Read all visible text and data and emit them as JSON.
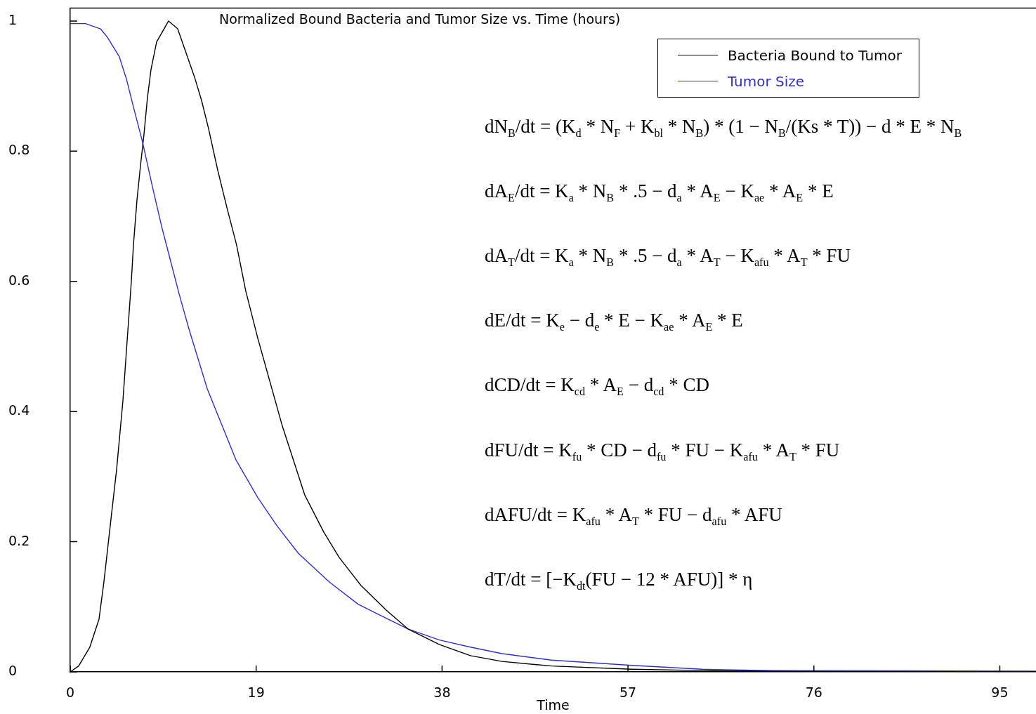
{
  "chart_data": {
    "type": "line",
    "title": "Normalized Bound Bacteria and Tumor Size vs. Time (hours)",
    "xlabel": "Time",
    "xlim": [
      0,
      98.7
    ],
    "xticks": [
      0,
      19,
      38,
      57,
      76,
      95
    ],
    "ylim": [
      0,
      1.02
    ],
    "yticks": [
      0,
      0.2,
      0.4,
      0.6,
      0.8,
      1
    ],
    "grid": false,
    "legend": "top right",
    "marker": "none",
    "line_style": "solid",
    "series": [
      {
        "name": "Bacteria Bound to Tumor",
        "color": "#000000",
        "x": [
          0,
          0.86,
          2.0,
          2.94,
          3.44,
          4.09,
          4.74,
          5.38,
          6.24,
          6.46,
          6.82,
          7.18,
          7.53,
          7.89,
          8.25,
          8.83,
          10.05,
          10.98,
          11.7,
          12.7,
          13.42,
          14.13,
          15.07,
          16.0,
          17.0,
          17.94,
          19.16,
          21.67,
          23.96,
          25.9,
          27.48,
          29.7,
          32.29,
          34.51,
          37.74,
          40.9,
          44.13,
          49.2,
          57.4,
          64.6,
          72,
          80,
          98.7
        ],
        "values": [
          0,
          0.009,
          0.038,
          0.081,
          0.138,
          0.225,
          0.311,
          0.416,
          0.599,
          0.656,
          0.725,
          0.778,
          0.825,
          0.882,
          0.925,
          0.968,
          1.0,
          0.988,
          0.957,
          0.914,
          0.878,
          0.835,
          0.771,
          0.714,
          0.656,
          0.585,
          0.513,
          0.378,
          0.272,
          0.215,
          0.176,
          0.133,
          0.095,
          0.066,
          0.042,
          0.025,
          0.016,
          0.009,
          0.004,
          0.002,
          0.001,
          0,
          0
        ]
      },
      {
        "name": "Tumor Size",
        "color": "#3030c8",
        "x": [
          0,
          1.56,
          3.09,
          3.8,
          5.02,
          5.74,
          6.46,
          7.39,
          8.39,
          9.33,
          10.26,
          11.12,
          12.13,
          14.0,
          16.93,
          19.16,
          21.1,
          23.32,
          26.48,
          29.42,
          31.28,
          34.51,
          37.74,
          40.9,
          44.13,
          49.2,
          57.4,
          64.6,
          71.75,
          98.7
        ],
        "values": [
          0.996,
          0.996,
          0.988,
          0.975,
          0.945,
          0.911,
          0.868,
          0.814,
          0.746,
          0.685,
          0.631,
          0.581,
          0.527,
          0.435,
          0.326,
          0.268,
          0.225,
          0.182,
          0.138,
          0.104,
          0.09,
          0.066,
          0.049,
          0.038,
          0.028,
          0.018,
          0.01,
          0.004,
          0.002,
          0.001
        ]
      }
    ],
    "annotations": [
      "dN$_{B}$/dt = (K$_{d}$ * N$_{F}$ + K$_{bl}$ * N$_{B}$) * (1 − N$_{B}$/(Ks * T)) − d * E * N$_{B}$",
      "dA$_{E}$/dt = K$_{a}$ * N$_{B}$ * .5 − d$_{a}$ * A$_{E}$ − K$_{ae}$ * A$_{E}$ * E",
      "dA$_{T}$/dt = K$_{a}$ * N$_{B}$ * .5 − d$_{a}$ * A$_{T}$ − K$_{afu}$ * A$_{T}$ * FU",
      "dE/dt = K$_{e}$ − d$_{e}$ * E − K$_{ae}$ * A$_{E}$ * E",
      "dCD/dt = K$_{cd}$ * A$_{E}$ − d$_{cd}$ * CD",
      "dFU/dt = K$_{fu}$ * CD − d$_{fu}$ * FU − K$_{afu}$ * A$_{T}$ * FU",
      "dAFU/dt = K$_{afu}$ * A$_{T}$ * FU − d$_{afu}$ * AFU",
      "dT/dt = [−K$_{dt}$(FU − 12 * AFU)] * η"
    ]
  }
}
